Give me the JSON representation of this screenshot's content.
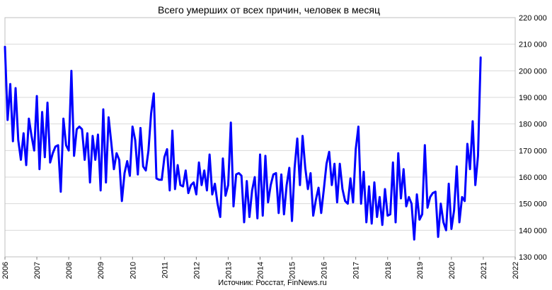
{
  "chart_data": {
    "type": "line",
    "title": "Всего умерших от всех причин, человек в месяц",
    "source": "Источник: Росстат, FinNews.ru",
    "xlabel": "",
    "ylabel": "",
    "xlim": [
      2006,
      2022
    ],
    "ylim": [
      130000,
      220000
    ],
    "x_ticks": [
      "2006",
      "2007",
      "2008",
      "2009",
      "2010",
      "2011",
      "2012",
      "2013",
      "2014",
      "2015",
      "2016",
      "2017",
      "2018",
      "2019",
      "2020",
      "2021",
      "2022"
    ],
    "y_ticks": [
      "130 000",
      "140 000",
      "150 000",
      "160 000",
      "170 000",
      "180 000",
      "190 000",
      "200 000",
      "210 000",
      "220 000"
    ],
    "grid": "horizontal",
    "legend": "none",
    "color": "#0000ff",
    "series": [
      {
        "x_start": "2006-01",
        "frequency": "monthly",
        "values": [
          209000,
          181500,
          195000,
          173500,
          193500,
          174000,
          166500,
          176500,
          164500,
          182000,
          175500,
          170000,
          190500,
          163000,
          184500,
          167500,
          188000,
          165500,
          169000,
          171500,
          172000,
          154500,
          182000,
          172000,
          170000,
          200000,
          168000,
          178000,
          179000,
          178000,
          166500,
          176500,
          158000,
          175500,
          166500,
          176000,
          155000,
          185500,
          158000,
          182500,
          173000,
          163000,
          169000,
          166500,
          151000,
          161500,
          166000,
          160500,
          179000,
          174000,
          161000,
          178500,
          164000,
          162500,
          170000,
          184000,
          191500,
          159500,
          159000,
          159000,
          167500,
          170500,
          155000,
          177500,
          155500,
          164500,
          157000,
          156500,
          162500,
          154000,
          157000,
          158000,
          153500,
          165500,
          157000,
          162500,
          155000,
          168500,
          153500,
          157500,
          150000,
          145000,
          167000,
          153000,
          157000,
          180500,
          149000,
          161000,
          161500,
          160500,
          143000,
          158500,
          145000,
          155000,
          160000,
          144500,
          168500,
          145500,
          168000,
          150500,
          157000,
          161000,
          161500,
          146500,
          161000,
          146000,
          157000,
          163500,
          143500,
          163500,
          174500,
          157000,
          175500,
          163500,
          155500,
          161500,
          145500,
          151500,
          156000,
          146500,
          155500,
          165000,
          169500,
          157000,
          165000,
          150500,
          165000,
          155500,
          151000,
          150000,
          159500,
          150500,
          170500,
          179000,
          150000,
          162000,
          143000,
          156500,
          142500,
          158000,
          145000,
          152500,
          142000,
          155500,
          145500,
          146000,
          165500,
          143000,
          169000,
          152000,
          163000,
          149000,
          152500,
          150000,
          136500,
          153500,
          144000,
          146000,
          172000,
          148500,
          152500,
          154000,
          154500,
          137500,
          150000,
          143000,
          140000,
          157500,
          140500,
          147500,
          164000,
          143000,
          152500,
          151000,
          172500,
          163000,
          181000,
          157000,
          168000,
          205000
        ]
      }
    ]
  }
}
